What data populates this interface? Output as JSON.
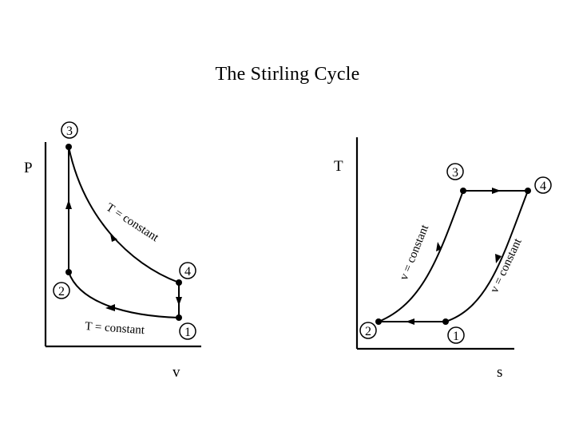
{
  "title": "The Stirling Cycle",
  "pv": {
    "y_axis": "P",
    "x_axis": "v",
    "states": [
      "3",
      "4",
      "1",
      "2"
    ],
    "upper_curve": "T = constant",
    "lower_curve": "T = constant"
  },
  "ts": {
    "y_axis": "T",
    "x_axis": "s",
    "states": [
      "3",
      "4",
      "1",
      "2"
    ],
    "left_curve": "v = constant",
    "right_curve": "v = constant"
  }
}
